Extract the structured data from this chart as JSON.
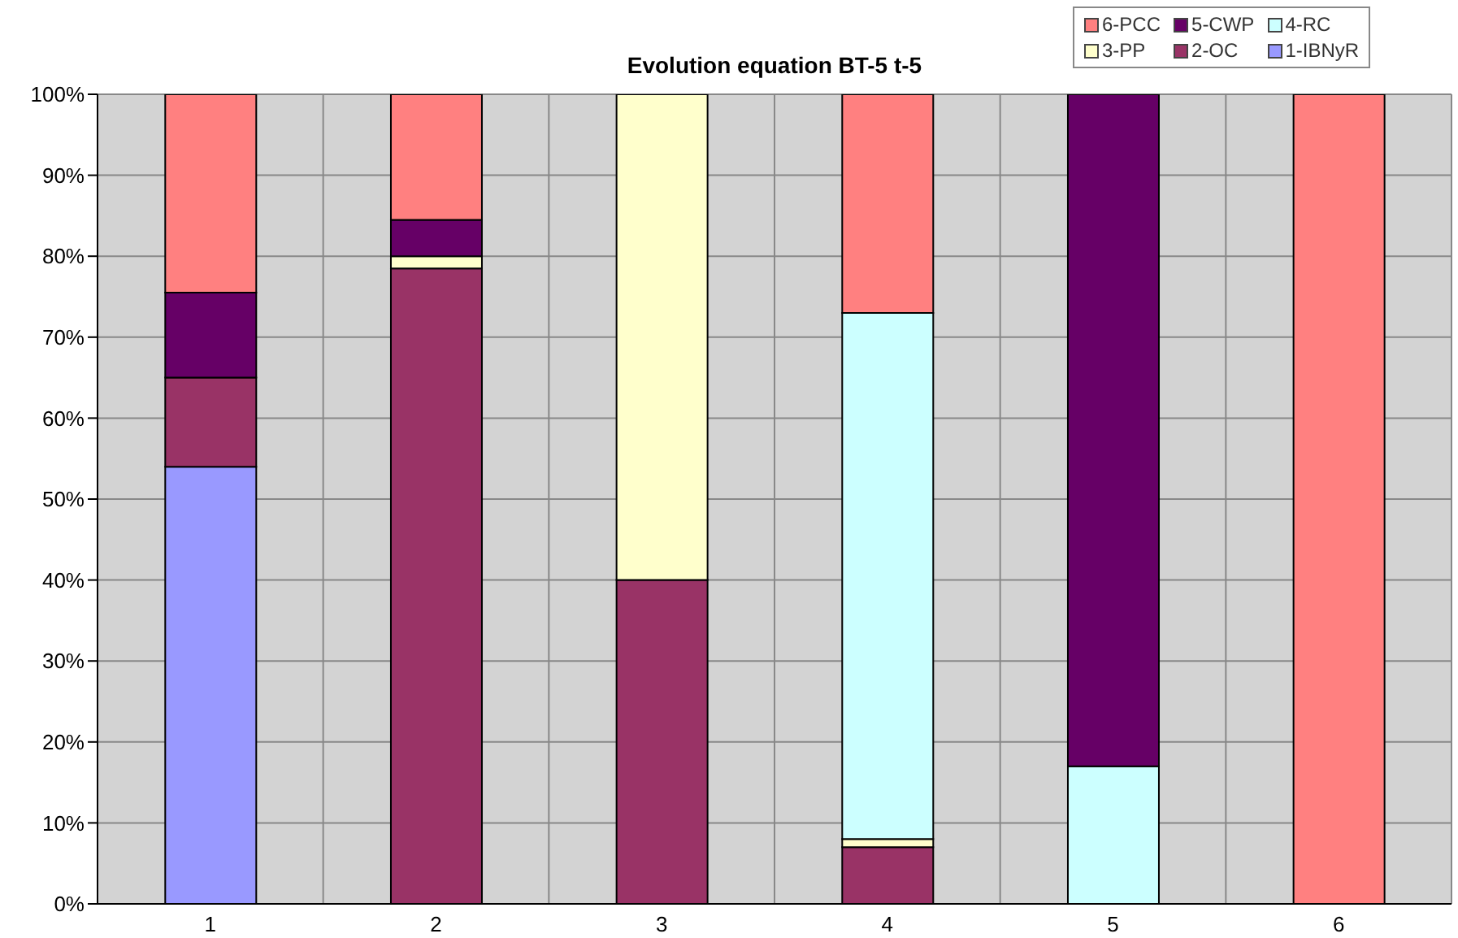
{
  "chart_data": {
    "type": "bar",
    "title": "Evolution equation BT-5 t-5",
    "categories": [
      "1",
      "2",
      "3",
      "4",
      "5",
      "6"
    ],
    "stacked": true,
    "series": [
      {
        "name": "1-IBNyR",
        "color": "#9999ff",
        "values": [
          54,
          0,
          0,
          0,
          0,
          0
        ]
      },
      {
        "name": "2-OC",
        "color": "#993366",
        "values": [
          11,
          78.5,
          40,
          7,
          0,
          0
        ]
      },
      {
        "name": "3-PP",
        "color": "#ffffcc",
        "values": [
          0,
          1.5,
          60,
          1,
          0,
          0
        ]
      },
      {
        "name": "4-RC",
        "color": "#ccffff",
        "values": [
          0,
          0,
          0,
          65,
          17,
          0
        ]
      },
      {
        "name": "5-CWP",
        "color": "#660066",
        "values": [
          10.5,
          4.5,
          0,
          0,
          83,
          0
        ]
      },
      {
        "name": "6-PCC",
        "color": "#ff8080",
        "values": [
          24.5,
          15.5,
          0,
          27,
          0,
          100
        ]
      }
    ],
    "ylim": [
      0,
      100
    ],
    "yticks": [
      {
        "value": 0,
        "label": "0%"
      },
      {
        "value": 10,
        "label": "10%"
      },
      {
        "value": 20,
        "label": "20%"
      },
      {
        "value": 30,
        "label": "30%"
      },
      {
        "value": 40,
        "label": "40%"
      },
      {
        "value": 50,
        "label": "50%"
      },
      {
        "value": 60,
        "label": "60%"
      },
      {
        "value": 70,
        "label": "70%"
      },
      {
        "value": 80,
        "label": "80%"
      },
      {
        "value": 90,
        "label": "90%"
      },
      {
        "value": 100,
        "label": "100%"
      }
    ],
    "grid": true,
    "legend": "top right"
  }
}
